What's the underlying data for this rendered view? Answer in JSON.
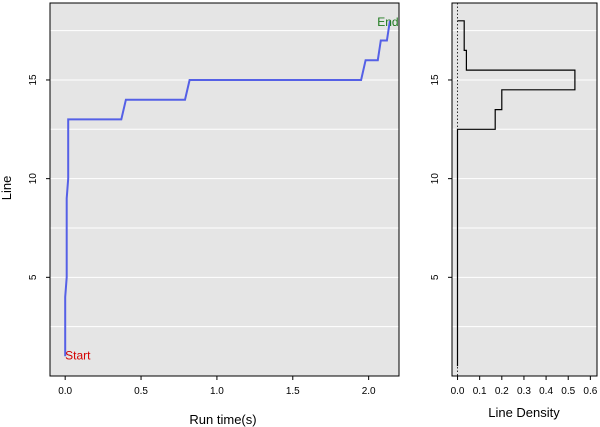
{
  "colors": {
    "panel_bg": "#e5e5e5",
    "grid": "#ffffff",
    "line": "#5560e6",
    "density_line": "#000000",
    "highlight": "#d40000",
    "start": "#d40000",
    "end": "#1e7a1e"
  },
  "chart_data": [
    {
      "type": "line",
      "title": "",
      "xlabel": "Run time(s)",
      "ylabel": "Line",
      "xlim": [
        -0.1,
        2.2
      ],
      "ylim": [
        0,
        18.9
      ],
      "x_ticks": [
        {
          "v": 0.0,
          "label": "0.0"
        },
        {
          "v": 0.5,
          "label": "0.5"
        },
        {
          "v": 1.0,
          "label": "1.0"
        },
        {
          "v": 1.5,
          "label": "1.5"
        },
        {
          "v": 2.0,
          "label": "2.0"
        }
      ],
      "y_ticks": [
        {
          "v": 5,
          "label": "5",
          "highlight": false
        },
        {
          "v": 10,
          "label": "10",
          "highlight": false
        },
        {
          "v": 15,
          "label": "15",
          "highlight": true
        }
      ],
      "y_grid": [
        2.5,
        5,
        7.5,
        10,
        12.5,
        15,
        17.5
      ],
      "series": [
        {
          "points": [
            [
              0.0,
              1
            ],
            [
              0.0,
              4
            ],
            [
              0.01,
              5
            ],
            [
              0.01,
              9
            ],
            [
              0.02,
              10
            ],
            [
              0.02,
              13
            ],
            [
              0.37,
              13
            ],
            [
              0.4,
              14
            ],
            [
              0.79,
              14
            ],
            [
              0.82,
              15
            ],
            [
              1.95,
              15
            ],
            [
              1.98,
              16
            ],
            [
              2.06,
              16
            ],
            [
              2.08,
              17
            ],
            [
              2.12,
              17
            ],
            [
              2.14,
              18
            ]
          ]
        }
      ],
      "annotations": [
        {
          "text": "Start",
          "x": 0.0,
          "y": 1,
          "color_key": "start"
        },
        {
          "text": "End",
          "x": 2.14,
          "y": 18,
          "color_key": "end"
        }
      ]
    },
    {
      "type": "step",
      "title": "",
      "xlabel": "Line Density",
      "ylabel": "",
      "xlim": [
        -0.025,
        0.63
      ],
      "ylim": [
        0,
        18.9
      ],
      "x_ticks": [
        {
          "v": 0.0,
          "label": "0.0"
        },
        {
          "v": 0.1,
          "label": "0.1"
        },
        {
          "v": 0.2,
          "label": "0.2"
        },
        {
          "v": 0.3,
          "label": "0.3"
        },
        {
          "v": 0.4,
          "label": "0.4"
        },
        {
          "v": 0.5,
          "label": "0.5"
        },
        {
          "v": 0.6,
          "label": "0.6"
        }
      ],
      "y_ticks": [
        {
          "v": 5,
          "label": "5"
        },
        {
          "v": 10,
          "label": "10"
        },
        {
          "v": 15,
          "label": "15"
        }
      ],
      "y_grid": [
        2.5,
        5,
        7.5,
        10,
        12.5,
        15,
        17.5
      ],
      "baseline_x": 0.0,
      "series": [
        {
          "points": [
            [
              0.0,
              0.5
            ],
            [
              0.0,
              12.5
            ],
            [
              0.17,
              12.5
            ],
            [
              0.17,
              13.5
            ],
            [
              0.2,
              13.5
            ],
            [
              0.2,
              14.5
            ],
            [
              0.53,
              14.5
            ],
            [
              0.53,
              15.5
            ],
            [
              0.04,
              15.5
            ],
            [
              0.04,
              16.5
            ],
            [
              0.03,
              16.5
            ],
            [
              0.03,
              18.0
            ],
            [
              0.0,
              18.0
            ]
          ]
        }
      ]
    }
  ]
}
